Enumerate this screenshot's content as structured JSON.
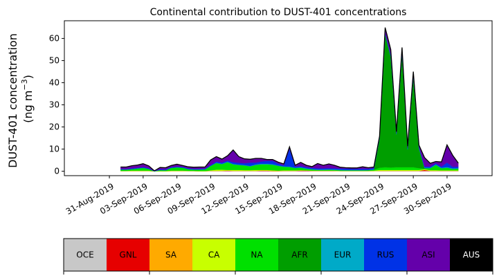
{
  "chart_data": {
    "type": "area",
    "stacked": true,
    "title": "Continental contribution to DUST-401 concentrations",
    "ylabel_line1": "DUST-401 concentration",
    "ylabel_line2": "(ng m",
    "ylabel_sup": "−3",
    "ylabel_close": ")",
    "x_start": "2019-09-01",
    "xlim": [
      "2019-08-27",
      "2019-10-04"
    ],
    "ylim": [
      -2,
      68
    ],
    "yticks": [
      0,
      10,
      20,
      30,
      40,
      50,
      60
    ],
    "xtick_labels": [
      "31-Aug-2019",
      "03-Sep-2019",
      "06-Sep-2019",
      "09-Sep-2019",
      "12-Sep-2019",
      "15-Sep-2019",
      "18-Sep-2019",
      "21-Sep-2019",
      "24-Sep-2019",
      "27-Sep-2019",
      "30-Sep-2019"
    ],
    "xtick_dates": [
      "2019-08-31",
      "2019-09-03",
      "2019-09-06",
      "2019-09-09",
      "2019-09-12",
      "2019-09-15",
      "2019-09-18",
      "2019-09-21",
      "2019-09-24",
      "2019-09-27",
      "2019-09-30"
    ],
    "x": [
      "2019-09-01",
      "2019-09-01T12",
      "2019-09-02",
      "2019-09-02T12",
      "2019-09-03",
      "2019-09-03T12",
      "2019-09-04",
      "2019-09-04T12",
      "2019-09-05",
      "2019-09-05T12",
      "2019-09-06",
      "2019-09-06T12",
      "2019-09-07",
      "2019-09-07T12",
      "2019-09-08",
      "2019-09-08T12",
      "2019-09-09",
      "2019-09-09T12",
      "2019-09-10",
      "2019-09-10T12",
      "2019-09-11",
      "2019-09-11T12",
      "2019-09-12",
      "2019-09-12T12",
      "2019-09-13",
      "2019-09-13T12",
      "2019-09-14",
      "2019-09-14T12",
      "2019-09-15",
      "2019-09-15T12",
      "2019-09-16",
      "2019-09-16T12",
      "2019-09-17",
      "2019-09-17T12",
      "2019-09-18",
      "2019-09-18T12",
      "2019-09-19",
      "2019-09-19T12",
      "2019-09-20",
      "2019-09-20T12",
      "2019-09-21",
      "2019-09-21T12",
      "2019-09-22",
      "2019-09-22T12",
      "2019-09-23",
      "2019-09-23T12",
      "2019-09-24",
      "2019-09-24T12",
      "2019-09-25",
      "2019-09-25T12",
      "2019-09-26",
      "2019-09-26T12",
      "2019-09-27",
      "2019-09-27T12",
      "2019-09-28",
      "2019-09-28T12",
      "2019-09-29",
      "2019-09-29T12",
      "2019-09-30",
      "2019-09-30T12",
      "2019-10-01"
    ],
    "series": [
      {
        "name": "OCE",
        "color": "#c8c8c8",
        "values": [
          0.1,
          0.1,
          0.1,
          0.1,
          0.1,
          0.1,
          0,
          0,
          0,
          0.1,
          0.1,
          0.1,
          0.1,
          0.1,
          0,
          0,
          0.1,
          0.1,
          0.1,
          0.1,
          0.1,
          0.1,
          0.1,
          0.1,
          0.1,
          0.1,
          0.1,
          0,
          0,
          0.1,
          0.1,
          0.1,
          0.1,
          0.1,
          0.1,
          0.1,
          0.1,
          0.1,
          0.1,
          0.1,
          0.1,
          0.1,
          0.1,
          0.1,
          0.1,
          0.1,
          0.1,
          0.1,
          0.1,
          0.1,
          0.1,
          0.1,
          0.1,
          0.1,
          0.1,
          0.1,
          0.1,
          0.1,
          0.1,
          0.1,
          0.1
        ]
      },
      {
        "name": "GNL",
        "color": "#e60000",
        "values": [
          0,
          0,
          0,
          0,
          0,
          0,
          0,
          0,
          0,
          0,
          0,
          0,
          0,
          0,
          0,
          0,
          0.1,
          0.1,
          0.1,
          0.2,
          0.1,
          0.1,
          0.1,
          0.1,
          0.1,
          0.2,
          0.2,
          0.1,
          0.1,
          0.1,
          0.1,
          0.1,
          0.2,
          0.2,
          0.1,
          0.1,
          0.1,
          0.1,
          0.1,
          0,
          0,
          0,
          0,
          0,
          0,
          0,
          0.1,
          0.1,
          0.1,
          0.1,
          0.1,
          0.1,
          0.1,
          0.1,
          0.5,
          0.1,
          0.1,
          0.1,
          0.1,
          0.1,
          0.1
        ]
      },
      {
        "name": "SA",
        "color": "#ffaa00",
        "values": [
          0,
          0,
          0,
          0,
          0,
          0,
          0,
          0,
          0,
          0,
          0,
          0,
          0,
          0,
          0,
          0,
          0,
          0,
          0,
          0,
          0,
          0,
          0,
          0,
          0,
          0,
          0,
          0,
          0,
          0,
          0,
          0,
          0,
          0,
          0,
          0,
          0,
          0,
          0,
          0,
          0,
          0,
          0,
          0,
          0,
          0,
          0,
          0,
          0,
          0,
          0,
          0,
          0,
          0,
          0,
          0,
          0,
          0,
          0,
          0,
          0
        ]
      },
      {
        "name": "CA",
        "color": "#c8ff00",
        "values": [
          0.1,
          0.1,
          0.2,
          0.2,
          0.2,
          0.2,
          0,
          0.1,
          0.1,
          0.2,
          0.2,
          0.2,
          0.1,
          0.1,
          0.1,
          0.1,
          0.2,
          0.5,
          0.5,
          0.3,
          0.4,
          0.4,
          0.3,
          0.3,
          0.4,
          0.3,
          0.3,
          0.3,
          0.2,
          0.2,
          0.2,
          0.2,
          0.2,
          0.1,
          0.1,
          0.1,
          0.1,
          0.1,
          0.1,
          0.1,
          0.1,
          0.1,
          0.1,
          0.1,
          0.1,
          0.2,
          0.4,
          0.4,
          0.4,
          0.4,
          0.4,
          0.4,
          0.4,
          0.4,
          0.3,
          0.3,
          0.3,
          0.2,
          0.2,
          0.2,
          0.2
        ]
      },
      {
        "name": "NA",
        "color": "#00e000",
        "values": [
          0.5,
          0.5,
          0.6,
          0.9,
          1.2,
          0.7,
          0,
          0.4,
          0.3,
          1.2,
          1.4,
          1.3,
          0.7,
          0.5,
          0.6,
          0.7,
          2,
          3,
          2.5,
          3.5,
          2.5,
          2.2,
          2.1,
          1.7,
          2.2,
          2.5,
          2.5,
          2.5,
          2.1,
          1.6,
          1.5,
          1,
          1.1,
          0.7,
          0.5,
          0.3,
          0.3,
          0.4,
          0.3,
          0.3,
          0.2,
          0.2,
          0.2,
          0.2,
          0.3,
          0.4,
          1,
          1.2,
          1.1,
          1.2,
          1.2,
          1.2,
          1.2,
          0.8,
          0.3,
          0.8,
          2.3,
          0.9,
          1.2,
          0.6,
          0.8
        ]
      },
      {
        "name": "AFR",
        "color": "#009e00",
        "values": [
          0,
          0,
          0,
          0,
          0,
          0,
          0,
          0,
          0,
          0,
          0,
          0,
          0,
          0,
          0,
          0,
          0,
          0,
          0,
          0,
          0,
          0,
          0,
          0,
          0,
          0,
          0,
          0,
          0,
          0,
          0,
          0,
          0,
          0,
          0,
          0,
          0,
          0,
          0,
          0,
          0,
          0,
          0,
          0,
          0,
          0,
          13,
          60,
          50,
          14.8,
          51.3,
          8,
          40.8,
          9,
          0.2,
          0,
          0,
          0,
          0,
          0,
          0
        ]
      },
      {
        "name": "EUR",
        "color": "#00aac8",
        "values": [
          0.1,
          0.1,
          0.1,
          0.1,
          0.1,
          0.1,
          0,
          0.1,
          0.1,
          0.1,
          0.1,
          0.1,
          0.1,
          0.1,
          0.1,
          0.1,
          0.1,
          0.2,
          0.2,
          0.2,
          0.2,
          0.2,
          0.2,
          0.2,
          0.3,
          0.3,
          0.3,
          0.3,
          0.2,
          0.2,
          0.2,
          0.2,
          0.2,
          0.2,
          0.2,
          0.2,
          0.2,
          0.2,
          0.2,
          0.2,
          0.2,
          0.2,
          0.2,
          0.2,
          0.1,
          0.2,
          0.2,
          0.3,
          0.3,
          0.3,
          0.3,
          0.3,
          0.3,
          0.3,
          0.3,
          0.3,
          0.3,
          0.3,
          0.3,
          0.3,
          0.2
        ]
      },
      {
        "name": "RUS",
        "color": "#0032e6",
        "values": [
          0.2,
          0.2,
          0.3,
          0.3,
          0.3,
          0.3,
          0.1,
          0.3,
          0.3,
          0.3,
          0.3,
          0.3,
          0.3,
          0.3,
          0.3,
          0.3,
          0.3,
          0.5,
          0.5,
          0.5,
          0.8,
          0.8,
          0.8,
          1.5,
          0.8,
          1,
          1.3,
          1.5,
          0.8,
          0.5,
          8,
          0.5,
          0.5,
          0.5,
          0.5,
          0.5,
          0.5,
          0.5,
          0.5,
          0.5,
          0.6,
          0.5,
          0.5,
          0.5,
          0.5,
          0.5,
          0.5,
          0.5,
          0.5,
          0.5,
          0.5,
          0.5,
          0.5,
          0.5,
          0.5,
          0.5,
          0.5,
          0.5,
          2,
          0.7,
          0.7
        ]
      },
      {
        "name": "ASI",
        "color": "#6400aa",
        "values": [
          0.9,
          0.9,
          1.2,
          1.2,
          1.5,
          1,
          0.1,
          0.8,
          0.8,
          0.7,
          1.1,
          0.6,
          0.7,
          0.7,
          0.8,
          0.7,
          2.3,
          2.2,
          1.6,
          2.2,
          5.5,
          2.8,
          2,
          1.5,
          1.9,
          1.4,
          0.6,
          0.6,
          0.7,
          0.6,
          0.9,
          0.6,
          1.7,
          0.9,
          0.6,
          2.2,
          1.4,
          1.9,
          1.4,
          0.6,
          0.4,
          0.4,
          0.4,
          0.9,
          0.5,
          0.5,
          0.5,
          2.3,
          2.5,
          0.5,
          2,
          0.7,
          1.6,
          0.6,
          4,
          1.5,
          0.8,
          2.1,
          8,
          5.2,
          1.6
        ]
      },
      {
        "name": "AUS",
        "color": "#000000",
        "values": [
          0,
          0,
          0,
          0,
          0,
          0,
          0,
          0,
          0,
          0,
          0,
          0,
          0,
          0,
          0,
          0,
          0,
          0,
          0,
          0,
          0,
          0,
          0,
          0,
          0,
          0,
          0,
          0,
          0,
          0,
          0,
          0,
          0,
          0,
          0,
          0,
          0,
          0,
          0,
          0,
          0,
          0,
          0,
          0,
          0,
          0,
          0,
          0,
          0,
          0,
          0,
          0,
          0,
          0,
          0,
          0,
          0,
          0,
          0,
          0,
          0
        ]
      }
    ],
    "legend_placement": "bottom"
  }
}
